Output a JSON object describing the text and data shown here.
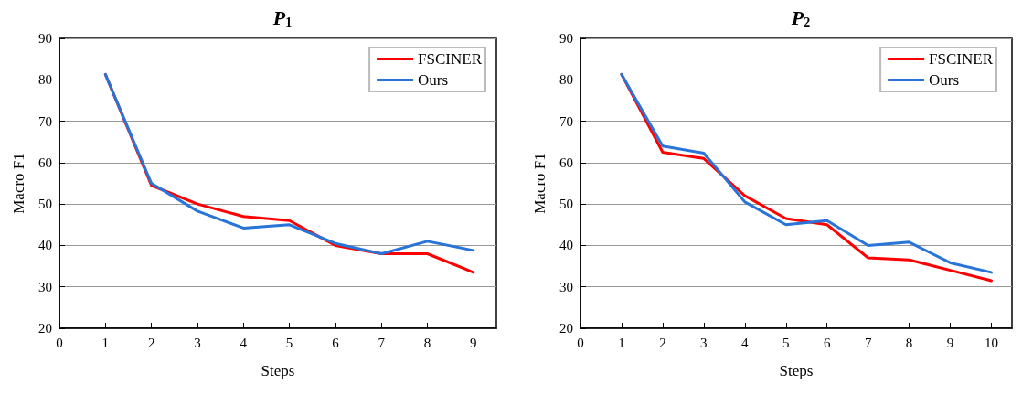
{
  "chart_data": [
    {
      "type": "line",
      "title": "P$_{1}$",
      "xlabel": "Steps",
      "ylabel": "Macro F1",
      "x": [
        1,
        2,
        3,
        4,
        5,
        6,
        7,
        8,
        9
      ],
      "xlim": [
        0,
        9.5
      ],
      "xticks": [
        0,
        1,
        2,
        3,
        4,
        5,
        6,
        7,
        8,
        9
      ],
      "ylim": [
        20,
        90
      ],
      "yticks": [
        20,
        30,
        40,
        50,
        60,
        70,
        80,
        90
      ],
      "grid": "y",
      "legend": "top right",
      "marker": "none",
      "line_style": "solid",
      "series": [
        {
          "name": "FSCINER",
          "color": "#ff0000",
          "values": [
            81.3,
            54.5,
            50,
            47,
            46,
            40,
            38,
            38,
            33.5
          ]
        },
        {
          "name": "Ours",
          "color": "#2874d8",
          "values": [
            81.3,
            55,
            48.3,
            44.2,
            45,
            40.5,
            38,
            41,
            38.8
          ]
        }
      ]
    },
    {
      "type": "line",
      "title": "P$_{2}$",
      "xlabel": "Steps",
      "ylabel": "Macro F1",
      "x": [
        1,
        2,
        3,
        4,
        5,
        6,
        7,
        8,
        9,
        10
      ],
      "xlim": [
        0,
        10.5
      ],
      "xticks": [
        0,
        1,
        2,
        3,
        4,
        5,
        6,
        7,
        8,
        9,
        10
      ],
      "ylim": [
        20,
        90
      ],
      "yticks": [
        20,
        30,
        40,
        50,
        60,
        70,
        80,
        90
      ],
      "grid": "y",
      "legend": "top right",
      "marker": "none",
      "line_style": "solid",
      "series": [
        {
          "name": "FSCINER",
          "color": "#ff0000",
          "values": [
            81.3,
            62.5,
            61,
            52,
            46.5,
            45,
            37,
            36.5,
            34,
            31.5
          ]
        },
        {
          "name": "Ours",
          "color": "#2874d8",
          "values": [
            81.3,
            64,
            62.3,
            50.5,
            45,
            46,
            40,
            40.8,
            35.8,
            33.5
          ]
        }
      ]
    }
  ]
}
